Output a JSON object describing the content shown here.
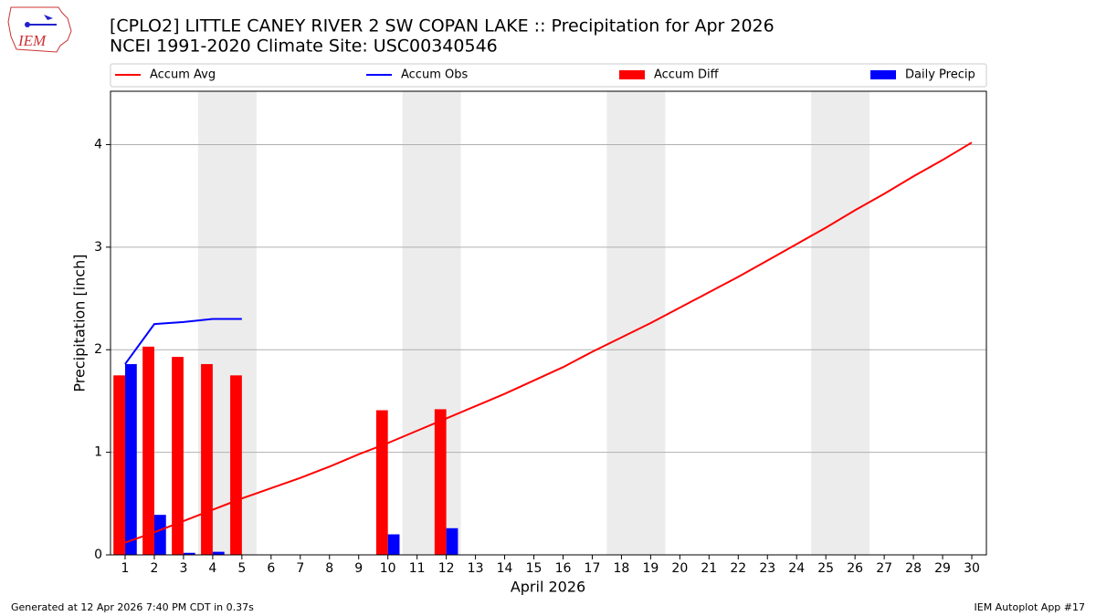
{
  "chart_data": {
    "type": "bar_line",
    "title": "[CPLO2] LITTLE CANEY RIVER 2 SW COPAN LAKE :: Precipitation for Apr 2026",
    "subtitle": "NCEI 1991-2020 Climate Site: USC00340546",
    "xlabel": "April 2026",
    "ylabel": "Precipitation [inch]",
    "logo_text": "IEM",
    "footer_left": "Generated at 12 Apr 2026 7:40 PM CDT in 0.37s",
    "footer_right": "IEM Autoplot App #17",
    "x": [
      1,
      2,
      3,
      4,
      5,
      6,
      7,
      8,
      9,
      10,
      11,
      12,
      13,
      14,
      15,
      16,
      17,
      18,
      19,
      20,
      21,
      22,
      23,
      24,
      25,
      26,
      27,
      28,
      29,
      30
    ],
    "xlim": [
      0.5,
      30.5
    ],
    "xticks": [
      1,
      2,
      3,
      4,
      5,
      6,
      7,
      8,
      9,
      10,
      11,
      12,
      13,
      14,
      15,
      16,
      17,
      18,
      19,
      20,
      21,
      22,
      23,
      24,
      25,
      26,
      27,
      28,
      29,
      30
    ],
    "ylim": [
      0,
      4.52
    ],
    "yticks": [
      0,
      1,
      2,
      3,
      4
    ],
    "grid": true,
    "shaded_x": [
      [
        3.5,
        5.5
      ],
      [
        10.5,
        12.5
      ],
      [
        17.5,
        19.5
      ],
      [
        24.5,
        26.5
      ]
    ],
    "series": [
      {
        "name": "Accum Avg",
        "kind": "line",
        "color": "#ff0000",
        "values": [
          0.12,
          0.22,
          0.33,
          0.44,
          0.55,
          0.65,
          0.75,
          0.86,
          0.98,
          1.09,
          1.21,
          1.33,
          1.45,
          1.57,
          1.7,
          1.83,
          1.98,
          2.12,
          2.26,
          2.41,
          2.56,
          2.71,
          2.87,
          3.03,
          3.19,
          3.36,
          3.52,
          3.69,
          3.85,
          4.02
        ]
      },
      {
        "name": "Accum Obs",
        "kind": "line",
        "color": "#0000ff",
        "values": [
          1.86,
          2.25,
          2.27,
          2.3,
          2.3,
          null,
          null,
          null,
          null,
          null,
          null,
          null,
          null,
          null,
          null,
          null,
          null,
          null,
          null,
          null,
          null,
          null,
          null,
          null,
          null,
          null,
          null,
          null,
          null,
          null
        ]
      },
      {
        "name": "Accum Diff",
        "kind": "bar",
        "color": "#ff0000",
        "offset": -0.2,
        "values": [
          1.75,
          2.03,
          1.93,
          1.86,
          1.75,
          null,
          null,
          null,
          null,
          1.41,
          null,
          1.42,
          null,
          null,
          null,
          null,
          null,
          null,
          null,
          null,
          null,
          null,
          null,
          null,
          null,
          null,
          null,
          null,
          null,
          null
        ]
      },
      {
        "name": "Daily Precip",
        "kind": "bar",
        "color": "#0000ff",
        "offset": 0.2,
        "values": [
          1.86,
          0.39,
          0.02,
          0.03,
          null,
          null,
          null,
          null,
          null,
          0.2,
          null,
          0.26,
          null,
          null,
          null,
          null,
          null,
          null,
          null,
          null,
          null,
          null,
          null,
          null,
          null,
          null,
          null,
          null,
          null,
          null
        ]
      }
    ]
  }
}
